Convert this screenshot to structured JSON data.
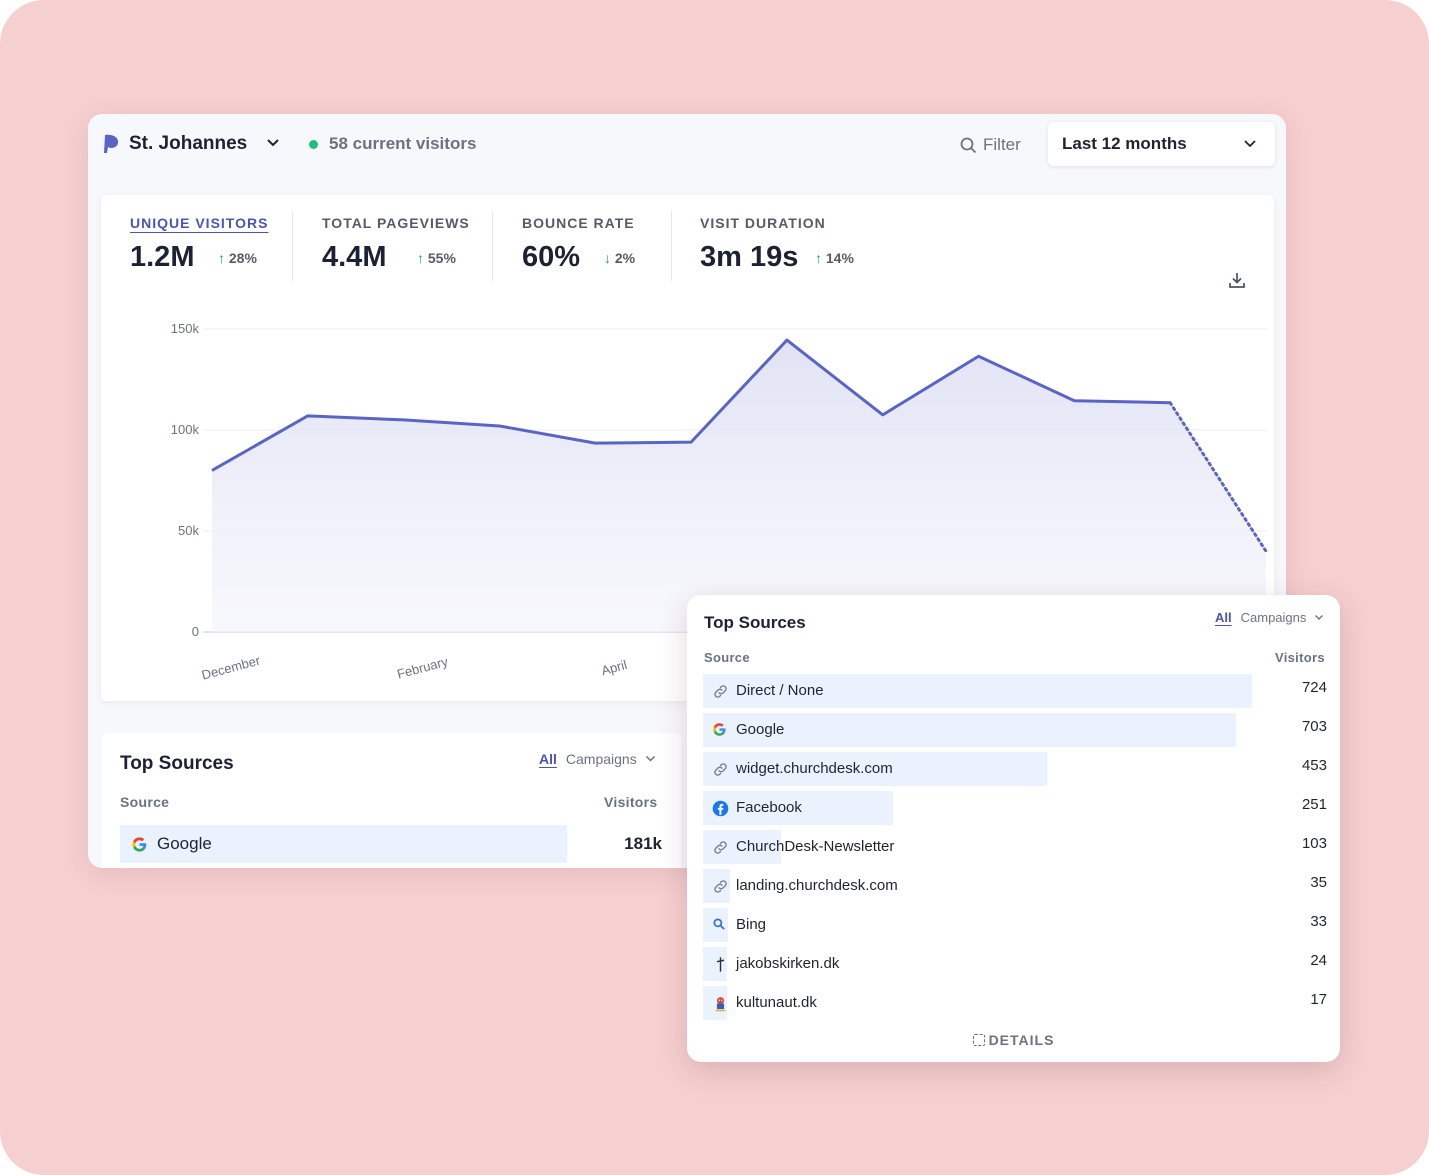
{
  "header": {
    "site_name": "St. Johannes",
    "live_visitors": "58 current visitors",
    "filter_label": "Filter",
    "period_label": "Last 12 months"
  },
  "kpis": [
    {
      "label": "UNIQUE VISITORS",
      "value": "1.2M",
      "delta": "28%",
      "direction": "up",
      "active": true
    },
    {
      "label": "TOTAL PAGEVIEWS",
      "value": "4.4M",
      "delta": "55%",
      "direction": "up",
      "active": false
    },
    {
      "label": "BOUNCE RATE",
      "value": "60%",
      "delta": "2%",
      "direction": "down",
      "active": false
    },
    {
      "label": "VISIT DURATION",
      "value": "3m 19s",
      "delta": "14%",
      "direction": "up",
      "active": false
    }
  ],
  "chart_data": {
    "type": "area",
    "title": "",
    "xlabel": "",
    "ylabel": "",
    "y_ticks": [
      "0",
      "50k",
      "100k",
      "150k"
    ],
    "ylim": [
      0,
      150000
    ],
    "x_tick_labels": [
      "December",
      "February",
      "April"
    ],
    "series": [
      {
        "values": [
          80000,
          107000,
          105000,
          102000,
          93500,
          94000,
          144500,
          107500,
          136500,
          114500,
          113500,
          40000
        ],
        "last_segment_dotted": true
      }
    ],
    "grid": true,
    "colors": {
      "line": "#5a64c4",
      "fill": "#e3e5f6"
    }
  },
  "bottom_panel": {
    "title": "Top Sources",
    "tab_all": "All",
    "tab_campaigns": "Campaigns",
    "col_source": "Source",
    "col_visitors": "Visitors",
    "rows": [
      {
        "name": "Google",
        "value": "181k",
        "icon": "google-icon"
      }
    ]
  },
  "front_panel": {
    "title": "Top Sources",
    "tab_all": "All",
    "tab_campaigns": "Campaigns",
    "col_source": "Source",
    "col_visitors": "Visitors",
    "details_label": "DETAILS",
    "rows": [
      {
        "name": "Direct / None",
        "value": "724",
        "icon": "link-icon"
      },
      {
        "name": "Google",
        "value": "703",
        "icon": "google-icon"
      },
      {
        "name": "widget.churchdesk.com",
        "value": "453",
        "icon": "link-icon"
      },
      {
        "name": "Facebook",
        "value": "251",
        "icon": "facebook-icon"
      },
      {
        "name": "ChurchDesk-Newsletter",
        "value": "103",
        "icon": "link-icon"
      },
      {
        "name": "landing.churchdesk.com",
        "value": "35",
        "icon": "link-icon"
      },
      {
        "name": "Bing",
        "value": "33",
        "icon": "bing-icon"
      },
      {
        "name": "jakobskirken.dk",
        "value": "24",
        "icon": "cross-icon"
      },
      {
        "name": "kultunaut.dk",
        "value": "17",
        "icon": "kultunaut-icon"
      }
    ]
  }
}
